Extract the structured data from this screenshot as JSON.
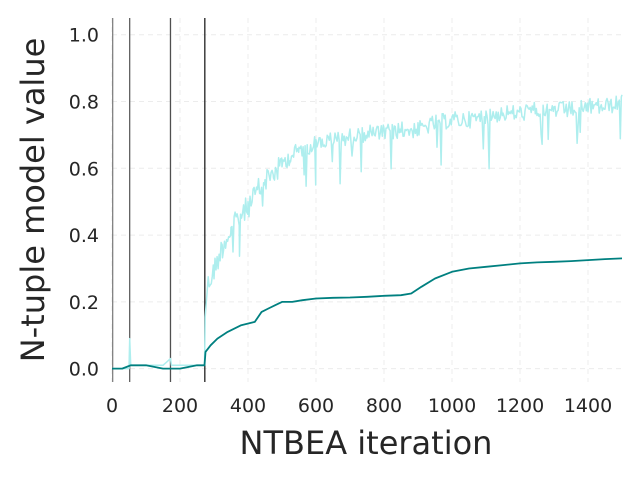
{
  "chart_data": {
    "type": "line",
    "title": "",
    "xlabel": "NTBEA iteration",
    "ylabel": "N-tuple model value",
    "xlim": [
      0,
      1500
    ],
    "ylim": [
      -0.04,
      1.05
    ],
    "x_ticks": [
      0,
      200,
      400,
      600,
      800,
      1000,
      1200,
      1400
    ],
    "y_ticks": [
      0.0,
      0.2,
      0.4,
      0.6,
      0.8,
      1.0
    ],
    "x_tick_labels": [
      "0",
      "200",
      "400",
      "600",
      "800",
      "1000",
      "1200",
      "1400"
    ],
    "y_tick_labels": [
      "0.0",
      "0.2",
      "0.4",
      "0.6",
      "0.8",
      "1.0"
    ],
    "grid": true,
    "vertical_lines": [
      {
        "x": 2,
        "color": "#808080"
      },
      {
        "x": 52,
        "color": "#606060"
      },
      {
        "x": 172,
        "color": "#505050"
      },
      {
        "x": 273,
        "color": "#202020"
      }
    ],
    "series": [
      {
        "style": "noisy-light",
        "color": "#aeeeee",
        "x": [
          0,
          50,
          52,
          55,
          100,
          150,
          172,
          175,
          200,
          250,
          272,
          274,
          280,
          300,
          325,
          350,
          375,
          400,
          425,
          450,
          475,
          500,
          525,
          550,
          575,
          600,
          650,
          700,
          750,
          800,
          850,
          900,
          950,
          1000,
          1050,
          1100,
          1150,
          1200,
          1250,
          1300,
          1350,
          1400,
          1450,
          1500
        ],
        "values": [
          0.0,
          0.0,
          0.09,
          0.01,
          0.01,
          0.01,
          0.03,
          0.01,
          0.01,
          0.01,
          0.01,
          0.2,
          0.28,
          0.33,
          0.4,
          0.45,
          0.49,
          0.52,
          0.56,
          0.6,
          0.62,
          0.64,
          0.66,
          0.68,
          0.69,
          0.7,
          0.71,
          0.72,
          0.73,
          0.73,
          0.74,
          0.74,
          0.76,
          0.77,
          0.77,
          0.78,
          0.79,
          0.79,
          0.8,
          0.8,
          0.8,
          0.81,
          0.81,
          0.82
        ]
      },
      {
        "style": "smooth-dark",
        "color": "#008080",
        "x": [
          0,
          30,
          55,
          100,
          150,
          200,
          250,
          272,
          275,
          290,
          310,
          340,
          380,
          420,
          440,
          460,
          480,
          500,
          530,
          560,
          600,
          650,
          700,
          750,
          800,
          850,
          880,
          910,
          950,
          1000,
          1050,
          1100,
          1150,
          1200,
          1250,
          1300,
          1350,
          1400,
          1450,
          1500
        ],
        "values": [
          0.0,
          0.0,
          0.01,
          0.01,
          0.0,
          0.0,
          0.01,
          0.01,
          0.05,
          0.07,
          0.09,
          0.11,
          0.13,
          0.14,
          0.17,
          0.18,
          0.19,
          0.2,
          0.2,
          0.205,
          0.21,
          0.212,
          0.213,
          0.215,
          0.218,
          0.22,
          0.225,
          0.245,
          0.27,
          0.29,
          0.3,
          0.305,
          0.31,
          0.315,
          0.318,
          0.32,
          0.322,
          0.325,
          0.328,
          0.33
        ]
      }
    ]
  }
}
